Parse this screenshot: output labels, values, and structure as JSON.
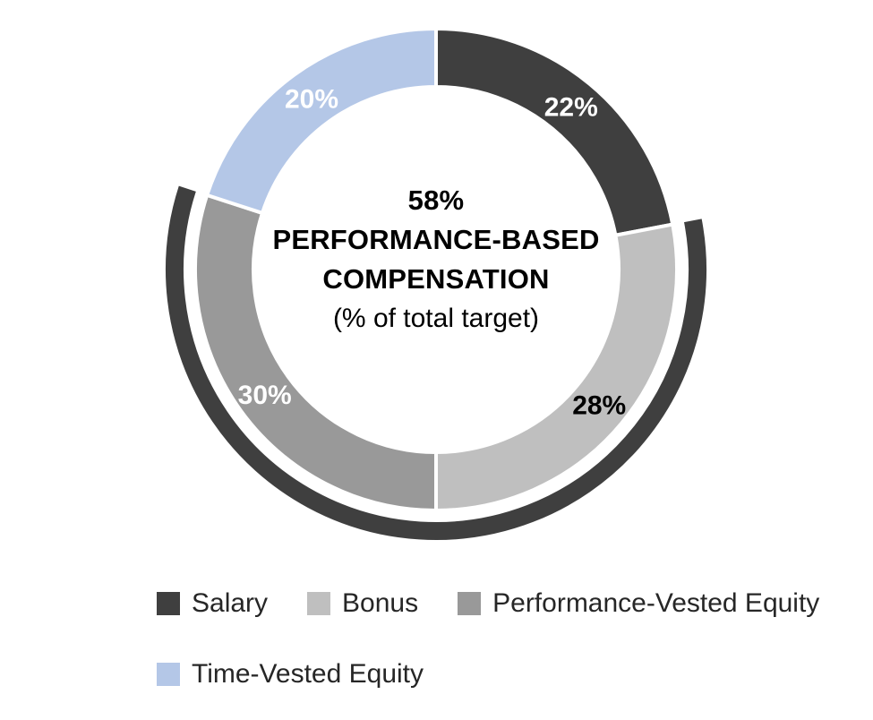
{
  "chart_data": {
    "type": "donut",
    "direction": "clockwise",
    "start_angle_deg": 0,
    "series": [
      {
        "name": "Salary",
        "value": 22,
        "color": "#3f3f3f",
        "data_label": "22%",
        "data_label_color": "#ffffff"
      },
      {
        "name": "Bonus",
        "value": 28,
        "color": "#bfbfbf",
        "data_label": "28%",
        "data_label_color": "#000000"
      },
      {
        "name": "Performance-Vested Equity",
        "value": 30,
        "color": "#999999",
        "data_label": "30%",
        "data_label_color": "#ffffff"
      },
      {
        "name": "Time-Vested Equity",
        "value": 20,
        "color": "#b4c7e7",
        "data_label": "20%",
        "data_label_color": "#ffffff"
      }
    ],
    "center_label": {
      "line1": "58%",
      "line2": "PERFORMANCE-BASED",
      "line3": "COMPENSATION",
      "line4": "(% of total target)"
    },
    "highlight_arc": {
      "start_percent": 22,
      "end_percent": 80,
      "color": "#3f3f3f"
    },
    "legend": {
      "position": "bottom",
      "rows": [
        [
          "Salary",
          "Bonus",
          "Performance-Vested Equity"
        ],
        [
          "Time-Vested Equity"
        ]
      ]
    }
  }
}
